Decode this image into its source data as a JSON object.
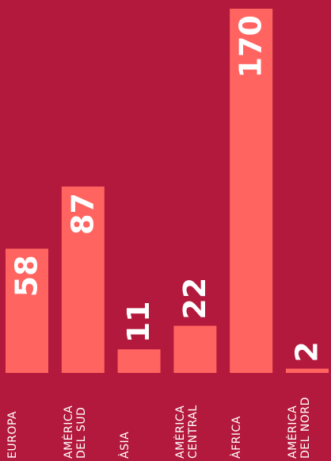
{
  "chart_data": {
    "type": "bar",
    "categories": [
      "EUROPA",
      "AMÈRICA DEL SUD",
      "ÀSIA",
      "AMÈRICA CENTRAL",
      "ÀFRICA",
      "AMÈRICA DEL NORD"
    ],
    "values": [
      58,
      87,
      11,
      22,
      170,
      2
    ],
    "color": "#ff6461"
  }
}
